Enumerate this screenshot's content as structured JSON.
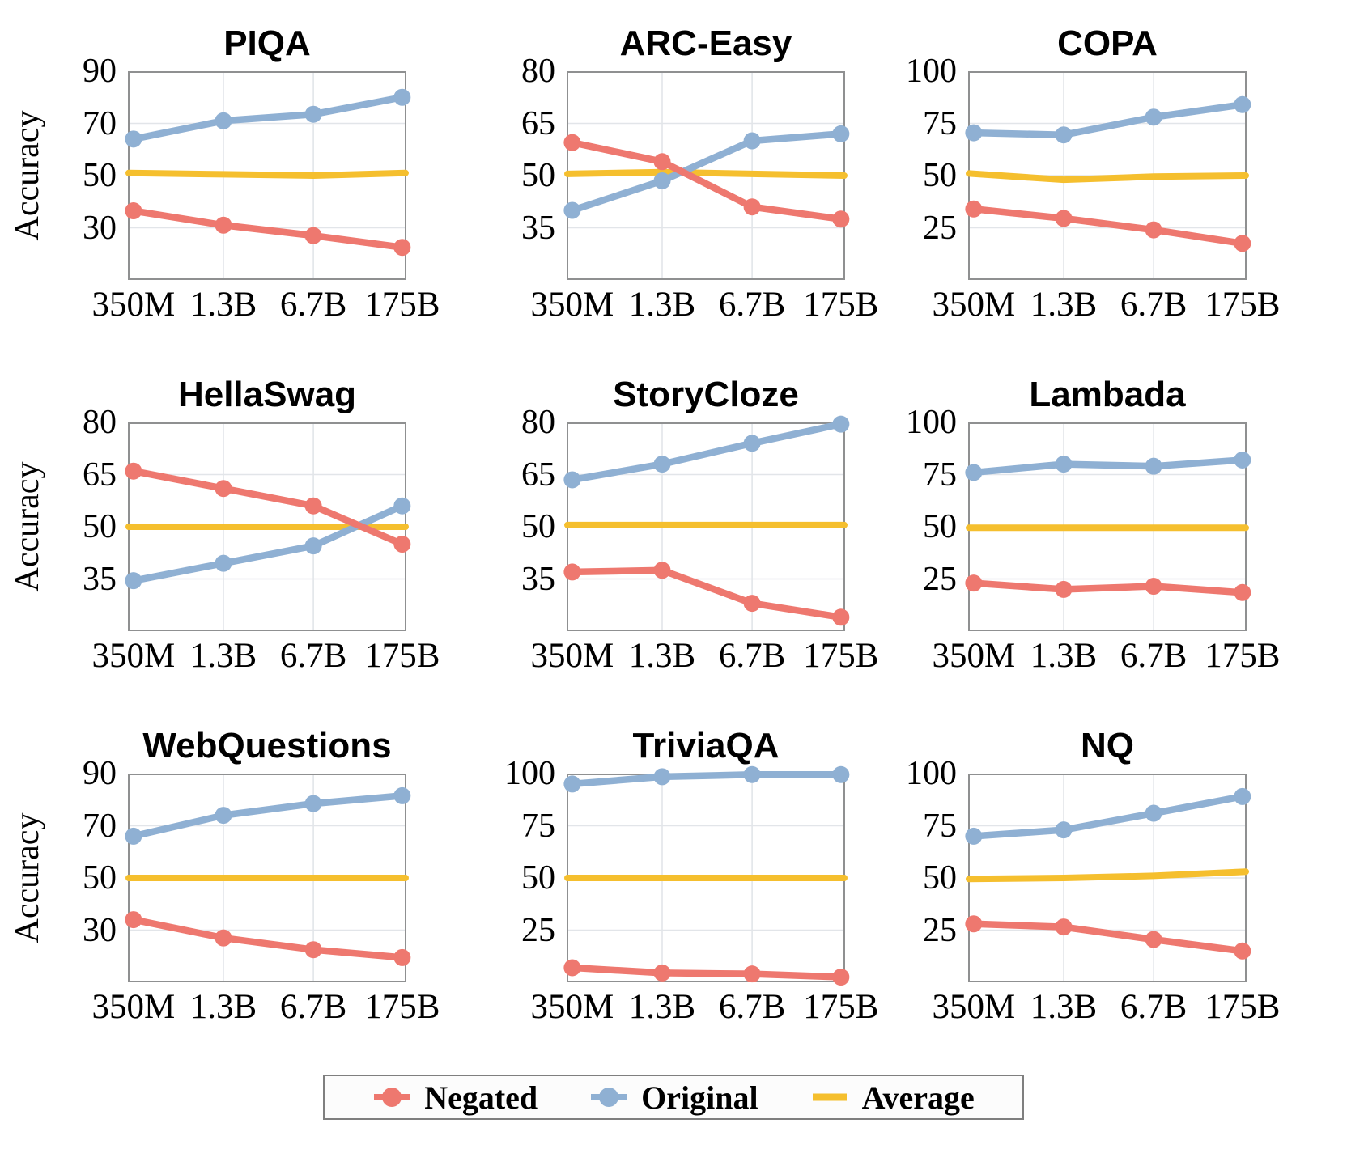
{
  "ylabel": "Accuracy",
  "colors": {
    "negated": "#ee786f",
    "original": "#8fb0d3",
    "average": "#f5bf2e",
    "grid": "#e2e5e9",
    "frame": "#8f9091"
  },
  "legend": {
    "items": [
      {
        "label": "Negated",
        "color": "#ee786f"
      },
      {
        "label": "Original",
        "color": "#8fb0d3"
      },
      {
        "label": "Average",
        "color": "#f5bf2e"
      }
    ]
  },
  "chart_data": [
    {
      "type": "line",
      "title": "PIQA",
      "ylabel": "Accuracy",
      "categories": [
        "350M",
        "1.3B",
        "6.7B",
        "175B"
      ],
      "ylim": [
        10,
        90
      ],
      "yticks": [
        90,
        70,
        50,
        30
      ],
      "grid": true,
      "series": [
        {
          "name": "Negated",
          "values": [
            36.5,
            31,
            27,
            22.5
          ]
        },
        {
          "name": "Original",
          "values": [
            64,
            71,
            73.5,
            80
          ]
        },
        {
          "name": "Average",
          "values": [
            51,
            50.5,
            50,
            51
          ]
        }
      ]
    },
    {
      "type": "line",
      "title": "ARC-Easy",
      "ylabel": "Accuracy",
      "categories": [
        "350M",
        "1.3B",
        "6.7B",
        "175B"
      ],
      "ylim": [
        20,
        80
      ],
      "yticks": [
        80,
        65,
        50,
        35
      ],
      "grid": true,
      "series": [
        {
          "name": "Negated",
          "values": [
            59.5,
            54,
            41,
            37.5
          ]
        },
        {
          "name": "Original",
          "values": [
            40,
            48.5,
            60,
            62
          ]
        },
        {
          "name": "Average",
          "values": [
            50.5,
            51,
            50.5,
            50
          ]
        }
      ]
    },
    {
      "type": "line",
      "title": "COPA",
      "ylabel": "Accuracy",
      "categories": [
        "350M",
        "1.3B",
        "6.7B",
        "175B"
      ],
      "ylim": [
        0,
        100
      ],
      "yticks": [
        100,
        75,
        50,
        25
      ],
      "grid": true,
      "series": [
        {
          "name": "Negated",
          "values": [
            34,
            29.5,
            24,
            17.5
          ]
        },
        {
          "name": "Original",
          "values": [
            70.5,
            69.5,
            78,
            84
          ]
        },
        {
          "name": "Average",
          "values": [
            51,
            48,
            49.5,
            50
          ]
        }
      ]
    },
    {
      "type": "line",
      "title": "HellaSwag",
      "ylabel": "Accuracy",
      "categories": [
        "350M",
        "1.3B",
        "6.7B",
        "175B"
      ],
      "ylim": [
        20,
        80
      ],
      "yticks": [
        80,
        65,
        50,
        35
      ],
      "grid": true,
      "series": [
        {
          "name": "Negated",
          "values": [
            66,
            61,
            56,
            45
          ]
        },
        {
          "name": "Original",
          "values": [
            34.5,
            39.5,
            44.5,
            56
          ]
        },
        {
          "name": "Average",
          "values": [
            50,
            50,
            50,
            50
          ]
        }
      ]
    },
    {
      "type": "line",
      "title": "StoryCloze",
      "ylabel": "Accuracy",
      "categories": [
        "350M",
        "1.3B",
        "6.7B",
        "175B"
      ],
      "ylim": [
        20,
        80
      ],
      "yticks": [
        80,
        65,
        50,
        35
      ],
      "grid": true,
      "series": [
        {
          "name": "Negated",
          "values": [
            37,
            37.5,
            28,
            24
          ]
        },
        {
          "name": "Original",
          "values": [
            63.5,
            68,
            74,
            79.5
          ]
        },
        {
          "name": "Average",
          "values": [
            50.5,
            50.5,
            50.5,
            50.5
          ]
        }
      ]
    },
    {
      "type": "line",
      "title": "Lambada",
      "ylabel": "Accuracy",
      "categories": [
        "350M",
        "1.3B",
        "6.7B",
        "175B"
      ],
      "ylim": [
        0,
        100
      ],
      "yticks": [
        100,
        75,
        50,
        25
      ],
      "grid": true,
      "series": [
        {
          "name": "Negated",
          "values": [
            23,
            20,
            21.5,
            18.5
          ]
        },
        {
          "name": "Original",
          "values": [
            76,
            80,
            79,
            82
          ]
        },
        {
          "name": "Average",
          "values": [
            49.5,
            49.5,
            49.5,
            49.5
          ]
        }
      ]
    },
    {
      "type": "line",
      "title": "WebQuestions",
      "ylabel": "Accuracy",
      "categories": [
        "350M",
        "1.3B",
        "6.7B",
        "175B"
      ],
      "ylim": [
        10,
        90
      ],
      "yticks": [
        90,
        70,
        50,
        30
      ],
      "grid": true,
      "series": [
        {
          "name": "Negated",
          "values": [
            34,
            27,
            22.5,
            19.5
          ]
        },
        {
          "name": "Original",
          "values": [
            66,
            74,
            78.5,
            81.5
          ]
        },
        {
          "name": "Average",
          "values": [
            50,
            50,
            50,
            50
          ]
        }
      ]
    },
    {
      "type": "line",
      "title": "TriviaQA",
      "ylabel": "Accuracy",
      "categories": [
        "350M",
        "1.3B",
        "6.7B",
        "175B"
      ],
      "ylim": [
        0,
        100
      ],
      "yticks": [
        100,
        75,
        50,
        25
      ],
      "grid": true,
      "series": [
        {
          "name": "Negated",
          "values": [
            7,
            4.5,
            4,
            2.5
          ]
        },
        {
          "name": "Original",
          "values": [
            95,
            98.5,
            99.5,
            99.5
          ]
        },
        {
          "name": "Average",
          "values": [
            50,
            50,
            50,
            50
          ]
        }
      ]
    },
    {
      "type": "line",
      "title": "NQ",
      "ylabel": "Accuracy",
      "categories": [
        "350M",
        "1.3B",
        "6.7B",
        "175B"
      ],
      "ylim": [
        0,
        100
      ],
      "yticks": [
        100,
        75,
        50,
        25
      ],
      "grid": true,
      "series": [
        {
          "name": "Negated",
          "values": [
            28,
            26.5,
            20.5,
            15
          ]
        },
        {
          "name": "Original",
          "values": [
            70,
            73,
            81,
            89
          ]
        },
        {
          "name": "Average",
          "values": [
            49.5,
            50,
            51,
            53
          ]
        }
      ]
    }
  ]
}
